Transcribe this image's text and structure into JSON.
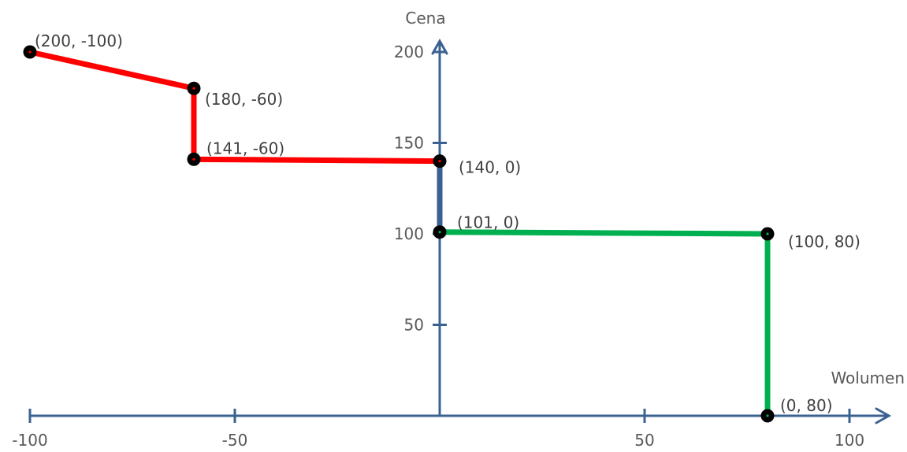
{
  "chart_data": {
    "type": "line",
    "xlabel": "Wolumen",
    "ylabel": "Cena",
    "xlim": [
      -100,
      110
    ],
    "ylim": [
      0,
      215
    ],
    "x_ticks": [
      -100,
      -50,
      50,
      100
    ],
    "x_tick_labels": [
      "-100",
      "-50",
      "50",
      "100"
    ],
    "y_ticks": [
      50,
      100,
      150,
      200
    ],
    "y_tick_labels": [
      "50",
      "100",
      "150",
      "200"
    ],
    "grid": false,
    "colors": {
      "axis": "#3a6291",
      "red_series": "#ff0000",
      "green_series": "#00b050",
      "marker": "#000000",
      "label_text": "#404040",
      "tick_text": "#595959"
    },
    "series": [
      {
        "color": "#ff0000",
        "points": [
          {
            "x": -100,
            "y": 200
          },
          {
            "x": -60,
            "y": 180
          },
          {
            "x": -60,
            "y": 141
          },
          {
            "x": 0,
            "y": 140
          }
        ]
      },
      {
        "color": "#3a6291",
        "points": [
          {
            "x": 0,
            "y": 140
          },
          {
            "x": 0,
            "y": 101
          }
        ]
      },
      {
        "color": "#00b050",
        "points": [
          {
            "x": 0,
            "y": 101
          },
          {
            "x": 80,
            "y": 100
          },
          {
            "x": 80,
            "y": 0
          }
        ]
      }
    ],
    "points": [
      {
        "x": -100,
        "y": 200,
        "label": "(200, -100)",
        "dot": "#ff0000"
      },
      {
        "x": -60,
        "y": 180,
        "label": "(180, -60)",
        "dot": "#ff0000"
      },
      {
        "x": -60,
        "y": 141,
        "label": "(141, -60)",
        "dot": "#ff0000"
      },
      {
        "x": 0,
        "y": 140,
        "label": "(140, 0)",
        "dot": "#ff0000"
      },
      {
        "x": 0,
        "y": 101,
        "label": "(101, 0)",
        "dot": "#00b050"
      },
      {
        "x": 80,
        "y": 100,
        "label": "(100, 80)",
        "dot": "#00b050"
      },
      {
        "x": 80,
        "y": 0,
        "label": "(0, 80)",
        "dot": "#00b050"
      }
    ]
  }
}
